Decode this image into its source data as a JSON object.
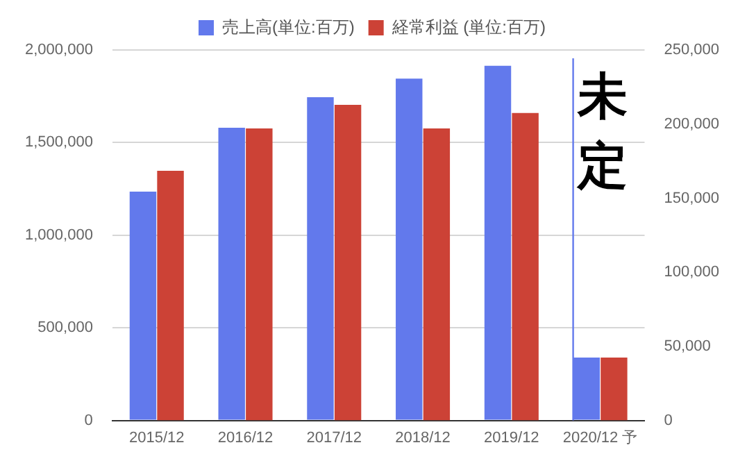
{
  "chart_data": {
    "type": "bar",
    "categories": [
      "2015/12",
      "2016/12",
      "2017/12",
      "2018/12",
      "2019/12",
      "2020/12 予"
    ],
    "series": [
      {
        "name": "売上高(単位:百万)",
        "color": "#6279ec",
        "values": [
          1235000,
          1580000,
          1745000,
          1845000,
          1915000,
          340000
        ]
      },
      {
        "name": "経常利益 (単位:百万)",
        "color": "#cc4236",
        "axis": "y2",
        "values": [
          168500,
          197000,
          213000,
          197000,
          207500,
          42500
        ]
      }
    ],
    "ylim": [
      0,
      2000000
    ],
    "yticks": [
      {
        "value": 0,
        "label": "0"
      },
      {
        "value": 500000,
        "label": "500,000"
      },
      {
        "value": 1000000,
        "label": "1,000,000"
      },
      {
        "value": 1500000,
        "label": "1,500,000"
      },
      {
        "value": 2000000,
        "label": "2,000,000"
      }
    ],
    "y2lim": [
      0,
      250000
    ],
    "y2ticks": [
      {
        "value": 0,
        "label": "0"
      },
      {
        "value": 50000,
        "label": "50,000"
      },
      {
        "value": 100000,
        "label": "100,000"
      },
      {
        "value": 150000,
        "label": "150,000"
      },
      {
        "value": 200000,
        "label": "200,000"
      },
      {
        "value": 250000,
        "label": "250,000"
      }
    ],
    "ref_lines": [
      {
        "axis": "x",
        "value": "2020/12 予",
        "color": "#6279ec"
      }
    ],
    "annotations": [
      "未定"
    ],
    "grid": "y",
    "legend": "top"
  }
}
